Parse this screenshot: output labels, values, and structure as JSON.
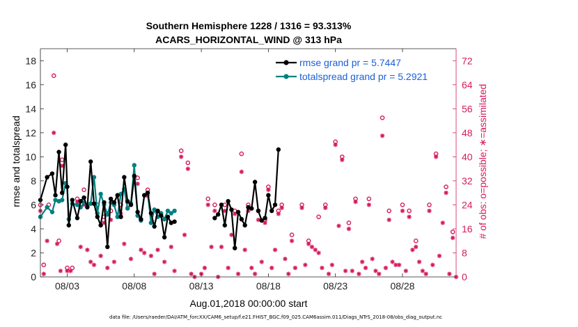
{
  "chart_data": {
    "type": "line",
    "title": "Southern Hemisphere 1228 / 1316 = 93.313%",
    "subtitle": "ACARS_HORIZONTAL_WIND @ 313 hPa",
    "xlabel": "Aug.01,2018 00:00:00 start",
    "ylabel": "rmse and totalspread",
    "ylabel_right": "# of obs: o=possible; ∗=assimilated",
    "xlim": [
      1.0,
      32.0
    ],
    "ylim": [
      0,
      19
    ],
    "ylim_right": [
      0,
      76
    ],
    "x_ticks": [
      3,
      8,
      13,
      18,
      23,
      28
    ],
    "x_tick_labels": [
      "08/03",
      "08/08",
      "08/13",
      "08/18",
      "08/23",
      "08/28"
    ],
    "y_ticks": [
      0,
      2,
      4,
      6,
      8,
      10,
      12,
      14,
      16,
      18
    ],
    "y_ticks_right": [
      0,
      8,
      16,
      24,
      32,
      40,
      48,
      56,
      64,
      72
    ],
    "footer": "data file: /Users/raeder/DAI/ATM_forcXX/CAM6_setup/f.e21.FHIST_BGC.f09_025.CAM6assim.011/Diags_NTrS_2018-08/obs_diag_output.nc",
    "colors": {
      "rmse": "#000000",
      "spread": "#008080",
      "obs": "#d6195e",
      "legend_text": "#1a5fd6"
    },
    "series": [
      {
        "name": "rmse grand pr = 5.7447",
        "color": "#000000",
        "x": [
          1.0,
          1.5,
          1.88,
          2.12,
          2.38,
          2.62,
          2.88,
          3.0,
          3.12,
          3.38,
          3.75,
          4.0,
          4.25,
          4.5,
          4.75,
          5.0,
          5.25,
          5.5,
          5.75,
          6.0,
          6.25,
          6.5,
          6.75,
          7.0,
          7.25,
          7.5,
          7.75,
          8.0,
          8.25,
          8.5,
          8.75,
          9.0,
          9.25,
          9.5,
          9.75,
          10.0,
          10.25,
          10.5,
          10.75,
          11.0,
          11.25,
          11.5,
          11.75,
          12.0,
          12.25,
          12.5,
          null,
          14.0,
          14.25,
          14.5,
          14.75,
          15.0,
          15.25,
          15.5,
          15.75,
          16.0,
          16.25,
          16.5,
          16.75,
          17.0,
          17.25,
          17.5,
          17.75,
          18.0,
          18.25,
          18.5,
          18.75,
          19.0,
          19.25,
          19.5,
          19.75,
          20.0,
          null,
          21.0,
          21.25,
          21.5,
          21.75,
          22.0,
          22.25,
          22.5,
          22.75,
          23.0,
          23.25,
          23.5,
          23.75,
          24.0,
          24.25,
          24.5,
          24.75,
          25.0,
          null,
          25.75,
          26.0,
          26.25,
          26.5,
          26.75,
          27.0,
          27.25,
          27.5,
          27.75,
          28.0,
          28.25,
          28.5,
          28.75,
          29.0,
          29.25,
          29.5,
          29.75,
          30.0,
          30.25,
          30.5,
          30.75,
          31.0,
          31.25,
          31.5,
          31.75
        ],
        "y": [
          6.4,
          8.3,
          8.6,
          6.8,
          10.4,
          7.0,
          11.0,
          7.5,
          4.3,
          6.4,
          4.9,
          6.3,
          6.6,
          5.8,
          9.6,
          6.1,
          5.0,
          4.3,
          6.2,
          2.5,
          6.5,
          6.2,
          6.8,
          5.0,
          8.3,
          6.3,
          6.0,
          8.4,
          5.4,
          4.8,
          6.8,
          7.0,
          5.3,
          4.2,
          5.5,
          5.1,
          3.3,
          5.0,
          4.5,
          4.6,
          null,
          null,
          null,
          null,
          null,
          null,
          null,
          4.9,
          5.2,
          6.0,
          4.3,
          6.3,
          5.6,
          2.4,
          5.4,
          4.8,
          4.3,
          5.8,
          5.7,
          7.9,
          5.5,
          4.7,
          4.9,
          6.8,
          5.5,
          6.0,
          10.6,
          null,
          null,
          null,
          null,
          null,
          null,
          null,
          null,
          null,
          null,
          null,
          null,
          null,
          null,
          null,
          null,
          null,
          null,
          null,
          null,
          null,
          null,
          null,
          null,
          null,
          null,
          null,
          null,
          null,
          null,
          null,
          null,
          null,
          null,
          null,
          null,
          null,
          null,
          null,
          null,
          null,
          null,
          null,
          null,
          null,
          null,
          null,
          null,
          null
        ],
        "markers": "filled-circle"
      },
      {
        "name": "totalspread grand pr = 5.2921",
        "color": "#008080",
        "x": [
          1.0,
          1.5,
          1.88,
          2.12,
          2.38,
          2.62,
          2.88,
          3.0,
          3.12,
          3.38,
          3.75,
          4.0,
          4.25,
          4.5,
          4.75,
          5.0,
          5.25,
          5.5,
          5.75,
          6.0,
          6.25,
          6.5,
          6.75,
          7.0,
          7.25,
          7.5,
          7.75,
          8.0,
          8.25,
          8.5,
          8.75,
          9.0,
          9.25,
          9.5,
          9.75,
          10.0,
          10.25,
          10.5,
          10.75,
          11.0
        ],
        "y": [
          5.0,
          5.8,
          5.4,
          6.4,
          6.3,
          6.4,
          7.8,
          7.5,
          4.8,
          6.1,
          6.0,
          5.8,
          6.2,
          5.9,
          6.1,
          8.3,
          5.3,
          6.9,
          6.0,
          5.2,
          6.2,
          6.0,
          5.0,
          6.9,
          7.3,
          5.7,
          6.1,
          9.3,
          5.1,
          4.7,
          6.8,
          7.0,
          4.5,
          5.6,
          5.0,
          5.3,
          4.8,
          5.5,
          5.3,
          5.5
        ],
        "markers": "filled-circle"
      }
    ],
    "obs_possible": [
      {
        "x": 1.0,
        "n": 24
      },
      {
        "x": 1.25,
        "n": 4
      },
      {
        "x": 1.62,
        "n": 24
      },
      {
        "x": 2.0,
        "n": 67
      },
      {
        "x": 2.38,
        "n": 12
      },
      {
        "x": 2.62,
        "n": 39
      },
      {
        "x": 3.0,
        "n": 3
      },
      {
        "x": 3.38,
        "n": 3
      },
      {
        "x": 3.75,
        "n": 26
      },
      {
        "x": 4.25,
        "n": 29
      },
      {
        "x": 5.25,
        "n": 24
      },
      {
        "x": 5.75,
        "n": 20
      },
      {
        "x": 6.25,
        "n": 22
      },
      {
        "x": 7.0,
        "n": 24
      },
      {
        "x": 7.5,
        "n": 25
      },
      {
        "x": 8.25,
        "n": 33
      },
      {
        "x": 9.0,
        "n": 29
      },
      {
        "x": 11.5,
        "n": 42
      },
      {
        "x": 12.0,
        "n": 38
      },
      {
        "x": 13.5,
        "n": 26
      },
      {
        "x": 14.0,
        "n": 24
      },
      {
        "x": 14.75,
        "n": 24
      },
      {
        "x": 15.5,
        "n": 22
      },
      {
        "x": 16.0,
        "n": 41
      },
      {
        "x": 16.5,
        "n": 24
      },
      {
        "x": 17.25,
        "n": 22
      },
      {
        "x": 17.75,
        "n": 19
      },
      {
        "x": 18.0,
        "n": 30
      },
      {
        "x": 18.75,
        "n": 22
      },
      {
        "x": 19.0,
        "n": 24
      },
      {
        "x": 19.75,
        "n": 14
      },
      {
        "x": 20.5,
        "n": 24
      },
      {
        "x": 21.0,
        "n": 12
      },
      {
        "x": 21.75,
        "n": 20
      },
      {
        "x": 22.25,
        "n": 24
      },
      {
        "x": 23.0,
        "n": 45
      },
      {
        "x": 23.5,
        "n": 40
      },
      {
        "x": 24.0,
        "n": 18
      },
      {
        "x": 24.5,
        "n": 26
      },
      {
        "x": 25.5,
        "n": 26
      },
      {
        "x": 26.5,
        "n": 53
      },
      {
        "x": 27.0,
        "n": 22
      },
      {
        "x": 28.0,
        "n": 24
      },
      {
        "x": 28.5,
        "n": 22
      },
      {
        "x": 29.0,
        "n": 12
      },
      {
        "x": 30.0,
        "n": 24
      },
      {
        "x": 30.5,
        "n": 41
      },
      {
        "x": 31.25,
        "n": 30
      },
      {
        "x": 31.75,
        "n": 15
      }
    ],
    "obs_assimilated": [
      {
        "x": 1.0,
        "n": 22
      },
      {
        "x": 1.25,
        "n": 1
      },
      {
        "x": 1.5,
        "n": 12
      },
      {
        "x": 2.0,
        "n": 48
      },
      {
        "x": 2.25,
        "n": 11
      },
      {
        "x": 2.5,
        "n": 2
      },
      {
        "x": 2.62,
        "n": 37
      },
      {
        "x": 3.0,
        "n": 2
      },
      {
        "x": 3.25,
        "n": 2
      },
      {
        "x": 3.75,
        "n": 25
      },
      {
        "x": 4.0,
        "n": 10
      },
      {
        "x": 4.25,
        "n": 24
      },
      {
        "x": 4.5,
        "n": 9
      },
      {
        "x": 4.75,
        "n": 5
      },
      {
        "x": 5.0,
        "n": 4
      },
      {
        "x": 5.25,
        "n": 21
      },
      {
        "x": 5.5,
        "n": 7
      },
      {
        "x": 5.75,
        "n": 18
      },
      {
        "x": 6.0,
        "n": 3
      },
      {
        "x": 6.25,
        "n": 19
      },
      {
        "x": 6.5,
        "n": 5
      },
      {
        "x": 7.0,
        "n": 21
      },
      {
        "x": 7.25,
        "n": 11
      },
      {
        "x": 7.5,
        "n": 23
      },
      {
        "x": 7.75,
        "n": 6
      },
      {
        "x": 8.25,
        "n": 31
      },
      {
        "x": 8.5,
        "n": 9
      },
      {
        "x": 8.75,
        "n": 8
      },
      {
        "x": 9.0,
        "n": 27
      },
      {
        "x": 9.25,
        "n": 7
      },
      {
        "x": 9.5,
        "n": 1
      },
      {
        "x": 9.75,
        "n": 9
      },
      {
        "x": 10.25,
        "n": 5
      },
      {
        "x": 10.75,
        "n": 10
      },
      {
        "x": 11.0,
        "n": 2
      },
      {
        "x": 11.5,
        "n": 40
      },
      {
        "x": 11.75,
        "n": 14
      },
      {
        "x": 12.0,
        "n": 36
      },
      {
        "x": 12.25,
        "n": 1
      },
      {
        "x": 12.5,
        "n": 0
      },
      {
        "x": 13.0,
        "n": 1
      },
      {
        "x": 13.25,
        "n": 3
      },
      {
        "x": 13.5,
        "n": 24
      },
      {
        "x": 13.75,
        "n": 10
      },
      {
        "x": 14.0,
        "n": 22
      },
      {
        "x": 14.25,
        "n": 0
      },
      {
        "x": 14.5,
        "n": 10
      },
      {
        "x": 14.75,
        "n": 22
      },
      {
        "x": 15.0,
        "n": 3
      },
      {
        "x": 15.25,
        "n": 14
      },
      {
        "x": 15.5,
        "n": 21
      },
      {
        "x": 15.75,
        "n": 1
      },
      {
        "x": 16.0,
        "n": 35
      },
      {
        "x": 16.25,
        "n": 9
      },
      {
        "x": 16.5,
        "n": 22
      },
      {
        "x": 16.75,
        "n": 3
      },
      {
        "x": 17.0,
        "n": 1
      },
      {
        "x": 17.25,
        "n": 19
      },
      {
        "x": 17.5,
        "n": 5
      },
      {
        "x": 17.75,
        "n": 18
      },
      {
        "x": 18.0,
        "n": 29
      },
      {
        "x": 18.25,
        "n": 3
      },
      {
        "x": 18.5,
        "n": 9
      },
      {
        "x": 18.75,
        "n": 21
      },
      {
        "x": 19.0,
        "n": 23
      },
      {
        "x": 19.25,
        "n": 6
      },
      {
        "x": 19.5,
        "n": 1
      },
      {
        "x": 19.75,
        "n": 12
      },
      {
        "x": 20.0,
        "n": 3
      },
      {
        "x": 20.5,
        "n": 23
      },
      {
        "x": 20.75,
        "n": 4
      },
      {
        "x": 21.0,
        "n": 11
      },
      {
        "x": 21.25,
        "n": 10
      },
      {
        "x": 21.5,
        "n": 9
      },
      {
        "x": 21.75,
        "n": 8
      },
      {
        "x": 22.0,
        "n": 3
      },
      {
        "x": 22.25,
        "n": 23
      },
      {
        "x": 22.5,
        "n": 1
      },
      {
        "x": 22.75,
        "n": 4
      },
      {
        "x": 23.0,
        "n": 44
      },
      {
        "x": 23.25,
        "n": 17
      },
      {
        "x": 23.5,
        "n": 39
      },
      {
        "x": 23.75,
        "n": 2
      },
      {
        "x": 24.0,
        "n": 16
      },
      {
        "x": 24.25,
        "n": 2
      },
      {
        "x": 24.5,
        "n": 25
      },
      {
        "x": 24.75,
        "n": 1
      },
      {
        "x": 25.0,
        "n": 5
      },
      {
        "x": 25.25,
        "n": 3
      },
      {
        "x": 25.5,
        "n": 24
      },
      {
        "x": 25.75,
        "n": 6
      },
      {
        "x": 26.0,
        "n": 2
      },
      {
        "x": 26.25,
        "n": 1
      },
      {
        "x": 26.5,
        "n": 47
      },
      {
        "x": 26.75,
        "n": 3
      },
      {
        "x": 27.0,
        "n": 19
      },
      {
        "x": 27.25,
        "n": 5
      },
      {
        "x": 27.5,
        "n": 4
      },
      {
        "x": 27.75,
        "n": 4
      },
      {
        "x": 28.0,
        "n": 22
      },
      {
        "x": 28.25,
        "n": 2
      },
      {
        "x": 28.5,
        "n": 20
      },
      {
        "x": 28.75,
        "n": 9
      },
      {
        "x": 29.0,
        "n": 10
      },
      {
        "x": 29.25,
        "n": 5
      },
      {
        "x": 29.5,
        "n": 2
      },
      {
        "x": 29.75,
        "n": 1
      },
      {
        "x": 30.0,
        "n": 22
      },
      {
        "x": 30.25,
        "n": 4
      },
      {
        "x": 30.5,
        "n": 40
      },
      {
        "x": 30.75,
        "n": 7
      },
      {
        "x": 31.0,
        "n": 18
      },
      {
        "x": 31.25,
        "n": 28
      },
      {
        "x": 31.5,
        "n": 1
      },
      {
        "x": 31.75,
        "n": 13
      },
      {
        "x": 32.0,
        "n": 0
      }
    ]
  }
}
